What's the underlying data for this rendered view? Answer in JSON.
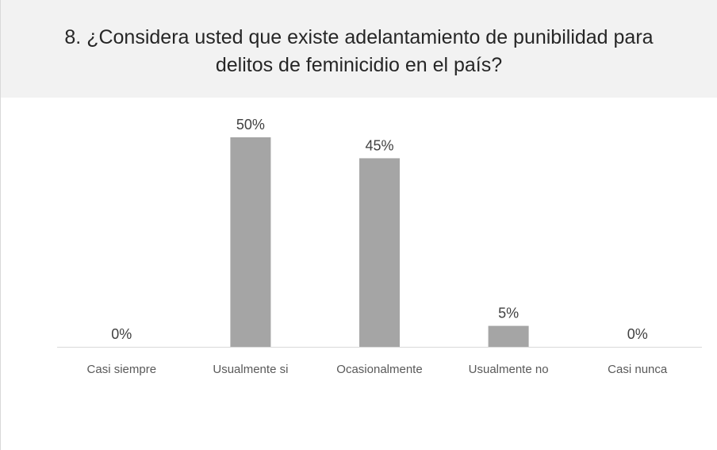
{
  "chart_data": {
    "type": "bar",
    "title_lines": [
      "8. ¿Considera usted que existe adelantamiento de punibilidad para",
      "delitos de feminicidio en el país?"
    ],
    "categories": [
      "Casi siempre",
      "Usualmente si",
      "Ocasionalmente",
      "Usualmente no",
      "Casi nunca"
    ],
    "values": [
      0,
      50,
      45,
      5,
      0
    ],
    "value_labels": [
      "0%",
      "50%",
      "45%",
      "5%",
      "0%"
    ],
    "unit": "%",
    "ylim": [
      0,
      50
    ],
    "grid": false,
    "legend": "none",
    "bar_color": "#a5a5a5",
    "axis_color": "#d9d9d9",
    "label_color": "#595959",
    "title_background": "#f2f2f2"
  }
}
